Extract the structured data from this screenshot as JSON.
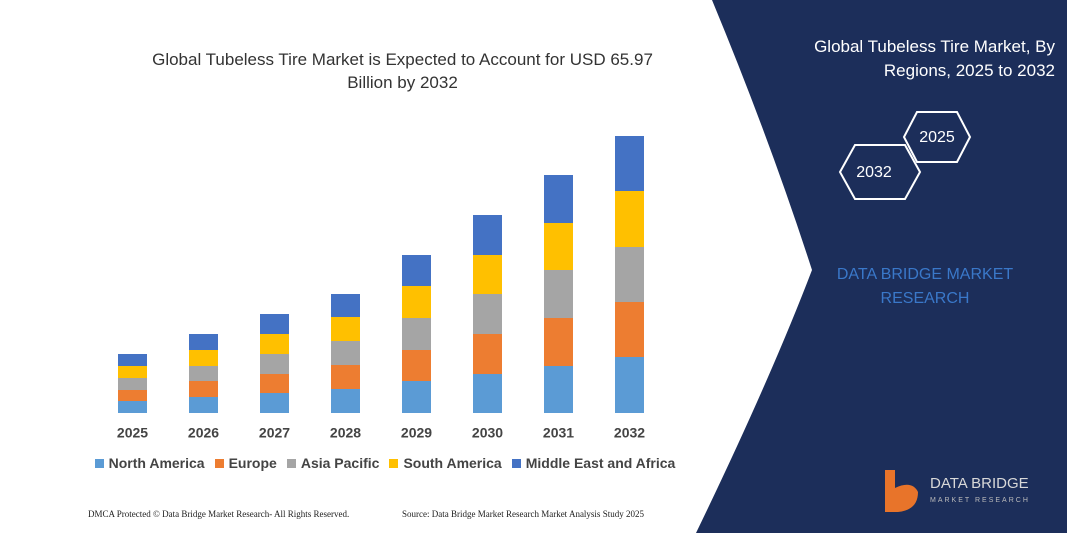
{
  "chart_data": {
    "type": "stacked-bar",
    "title": "Global Tubeless Tire Market is Expected to Account for USD 65.97 Billion by 2032",
    "categories": [
      "2025",
      "2026",
      "2027",
      "2028",
      "2029",
      "2030",
      "2031",
      "2032"
    ],
    "series": [
      {
        "name": "North America",
        "color": "#5b9bd5",
        "values": [
          12,
          16,
          20,
          24,
          32,
          39,
          47,
          56
        ]
      },
      {
        "name": "Europe",
        "color": "#ed7d31",
        "values": [
          11,
          16,
          19,
          24,
          31,
          40,
          48,
          55
        ]
      },
      {
        "name": "Asia Pacific",
        "color": "#a5a5a5",
        "values": [
          12,
          15,
          20,
          24,
          32,
          40,
          48,
          55
        ]
      },
      {
        "name": "South America",
        "color": "#ffc000",
        "values": [
          12,
          16,
          20,
          24,
          32,
          39,
          47,
          56
        ]
      },
      {
        "name": "Middle East and Africa",
        "color": "#4472c4",
        "values": [
          12,
          16,
          20,
          23,
          31,
          40,
          48,
          55
        ]
      }
    ],
    "ylim": [
      0,
      300
    ]
  },
  "side_panel": {
    "title": "Global Tubeless Tire Market, By Regions, 2025 to 2032",
    "hex_start": "2025",
    "hex_end": "2032",
    "brand": "DATA BRIDGE MARKET RESEARCH"
  },
  "logo": {
    "name": "DATA BRIDGE",
    "tagline": "MARKET RESEARCH"
  },
  "footer": {
    "left": "DMCA Protected © Data Bridge Market Research- All Rights Reserved.",
    "right": "Source: Data Bridge Market Research Market Analysis Study 2025"
  }
}
